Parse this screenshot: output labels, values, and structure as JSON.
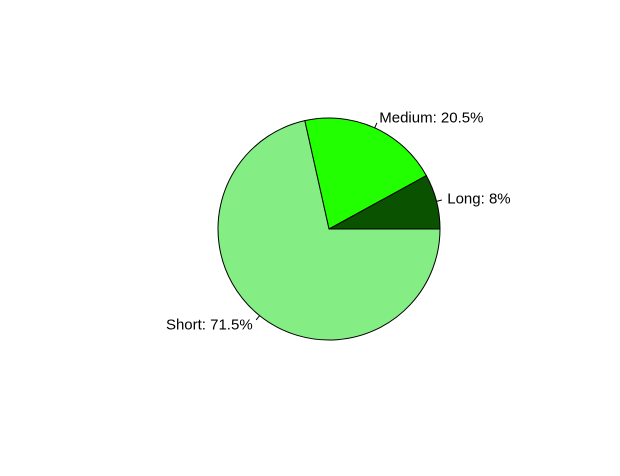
{
  "chart_data": {
    "type": "pie",
    "title": "",
    "direction": "counterclockwise",
    "start_angle_deg": 0,
    "slices": [
      {
        "label": "Long: 8%",
        "category": "Long",
        "value": 8,
        "color": "#0b5200"
      },
      {
        "label": "Medium: 20.5%",
        "category": "Medium",
        "value": 20.5,
        "color": "#22ff00"
      },
      {
        "label": "Short: 71.5%",
        "category": "Short",
        "value": 71.5,
        "color": "#84ee84"
      }
    ],
    "outline_color": "#000000"
  }
}
